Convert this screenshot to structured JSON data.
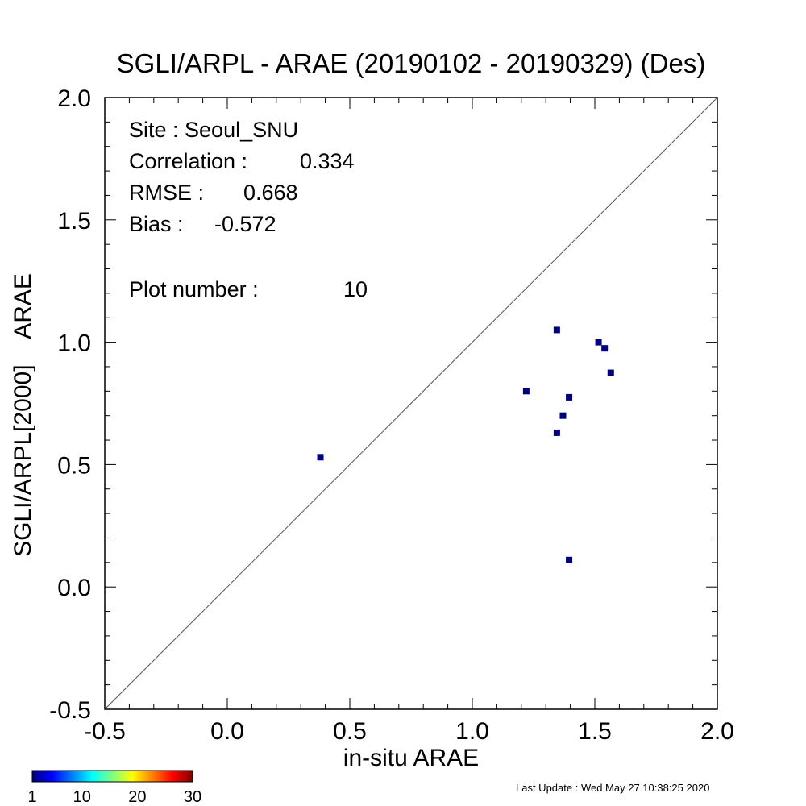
{
  "chart_data": {
    "type": "scatter",
    "title": "SGLI/ARPL - ARAE (20190102 - 20190329) (Des)",
    "xlabel": "in-situ ARAE",
    "ylabel": "SGLI/ARPL[2000]    ARAE",
    "xlim": [
      -0.5,
      2.0
    ],
    "ylim": [
      -0.5,
      2.0
    ],
    "xticks": [
      "-0.5",
      "0.0",
      "0.5",
      "1.0",
      "1.5",
      "2.0"
    ],
    "yticks": [
      "-0.5",
      "0.0",
      "0.5",
      "1.0",
      "1.5",
      "2.0"
    ],
    "grid": false,
    "one_to_one_line": true,
    "point_color": "#00007f",
    "points": [
      {
        "x": 0.38,
        "y": 0.53
      },
      {
        "x": 1.22,
        "y": 0.8
      },
      {
        "x": 1.345,
        "y": 1.05
      },
      {
        "x": 1.345,
        "y": 0.63
      },
      {
        "x": 1.37,
        "y": 0.7
      },
      {
        "x": 1.395,
        "y": 0.775
      },
      {
        "x": 1.395,
        "y": 0.11
      },
      {
        "x": 1.515,
        "y": 1.0
      },
      {
        "x": 1.54,
        "y": 0.975
      },
      {
        "x": 1.565,
        "y": 0.875
      }
    ],
    "stats": {
      "site_label": "Site : Seoul_SNU",
      "correlation_label": "Correlation :",
      "correlation_value": "0.334",
      "rmse_label": "RMSE :",
      "rmse_value": "0.668",
      "bias_label": "Bias :",
      "bias_value": "-0.572",
      "plot_number_label": "Plot number :",
      "plot_number_value": "10"
    },
    "colorbar": {
      "ticks": [
        "1",
        "10",
        "20",
        "30"
      ],
      "colors": [
        "#00007f",
        "#0000ff",
        "#007fff",
        "#00ffff",
        "#7fff7f",
        "#ffff00",
        "#ff7f00",
        "#ff0000",
        "#7f0000"
      ]
    }
  },
  "footer": {
    "last_update": "Last Update : Wed May 27 10:38:25 2020"
  }
}
